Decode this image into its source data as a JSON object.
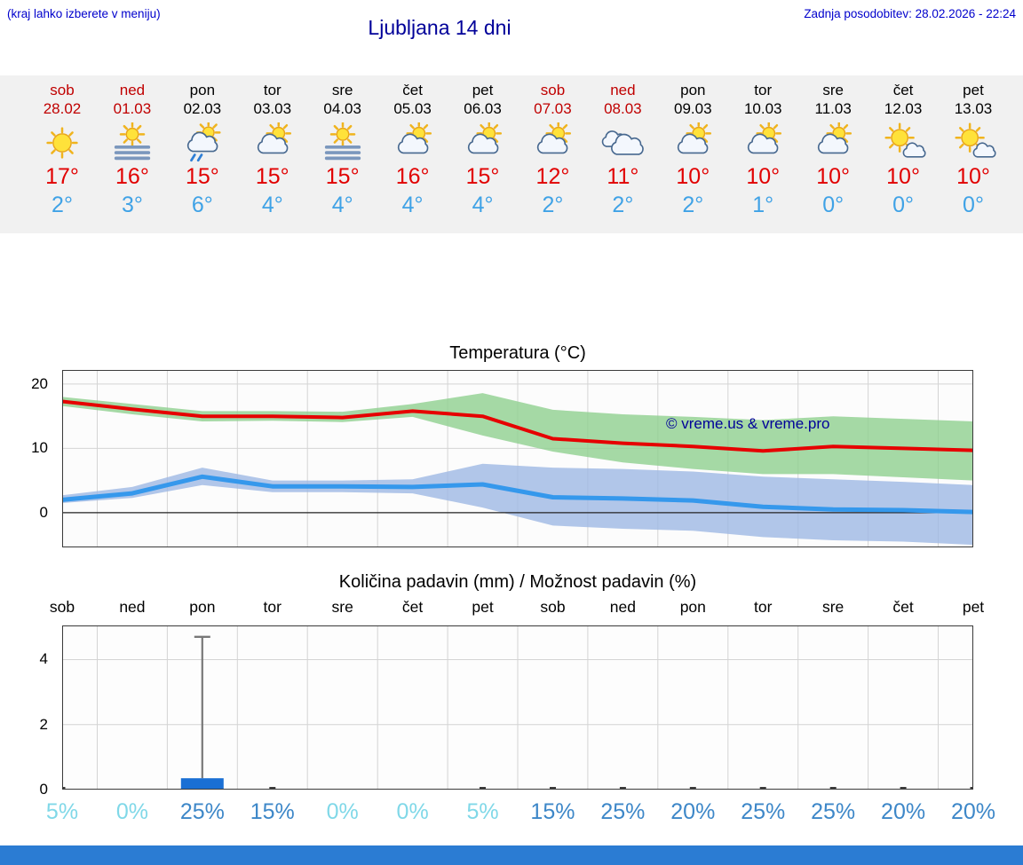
{
  "header": {
    "hint": "(kraj lahko izberete v meniju)",
    "title": "Ljubljana 14 dni",
    "updated": "Zadnja posodobitev: 28.02.2026 - 22:24"
  },
  "colors": {
    "accent_link": "#0000cc",
    "title": "#000099",
    "weekend": "#c00000",
    "temp_max_text": "#e10000",
    "temp_min_text": "#3fa2e6",
    "max_line": "#e60000",
    "min_line": "#3598ec",
    "max_band": "#8fd08f",
    "min_band": "#9db8e4",
    "bar": "#1a6fd4",
    "percent_low": "#80d8e8",
    "percent_high": "#3d87c8",
    "footer": "#2b7cd3",
    "strip_bg": "#f1f1f1"
  },
  "forecast": {
    "days": [
      {
        "name": "sob",
        "date": "28.02",
        "weekend": true,
        "icon": "sun",
        "tmax": "17°",
        "tmin": "2°"
      },
      {
        "name": "ned",
        "date": "01.03",
        "weekend": true,
        "icon": "sun-fog",
        "tmax": "16°",
        "tmin": "3°"
      },
      {
        "name": "pon",
        "date": "02.03",
        "weekend": false,
        "icon": "sun-cloud-rain",
        "tmax": "15°",
        "tmin": "6°"
      },
      {
        "name": "tor",
        "date": "03.03",
        "weekend": false,
        "icon": "sun-cloud",
        "tmax": "15°",
        "tmin": "4°"
      },
      {
        "name": "sre",
        "date": "04.03",
        "weekend": false,
        "icon": "sun-fog",
        "tmax": "15°",
        "tmin": "4°"
      },
      {
        "name": "čet",
        "date": "05.03",
        "weekend": false,
        "icon": "sun-cloud",
        "tmax": "16°",
        "tmin": "4°"
      },
      {
        "name": "pet",
        "date": "06.03",
        "weekend": false,
        "icon": "sun-cloud",
        "tmax": "15°",
        "tmin": "4°"
      },
      {
        "name": "sob",
        "date": "07.03",
        "weekend": true,
        "icon": "sun-cloud",
        "tmax": "12°",
        "tmin": "2°"
      },
      {
        "name": "ned",
        "date": "08.03",
        "weekend": true,
        "icon": "cloud",
        "tmax": "11°",
        "tmin": "2°"
      },
      {
        "name": "pon",
        "date": "09.03",
        "weekend": false,
        "icon": "sun-cloud",
        "tmax": "10°",
        "tmin": "2°"
      },
      {
        "name": "tor",
        "date": "10.03",
        "weekend": false,
        "icon": "sun-cloud",
        "tmax": "10°",
        "tmin": "1°"
      },
      {
        "name": "sre",
        "date": "11.03",
        "weekend": false,
        "icon": "sun-cloud",
        "tmax": "10°",
        "tmin": "0°"
      },
      {
        "name": "čet",
        "date": "12.03",
        "weekend": false,
        "icon": "sun-small-cloud",
        "tmax": "10°",
        "tmin": "0°"
      },
      {
        "name": "pet",
        "date": "13.03",
        "weekend": false,
        "icon": "sun-small-cloud",
        "tmax": "10°",
        "tmin": "0°"
      }
    ]
  },
  "chart_data": [
    {
      "type": "line",
      "title": "Temperatura (°C)",
      "x": [
        "28.02",
        "01.03",
        "02.03",
        "03.03",
        "04.03",
        "05.03",
        "06.03",
        "07.03",
        "08.03",
        "09.03",
        "10.03",
        "11.03",
        "12.03",
        "13.03"
      ],
      "ylim": [
        -5.4,
        22.2
      ],
      "yticks": [
        0,
        10,
        20
      ],
      "grid": true,
      "legend": "none",
      "watermark": "© vreme.us & vreme.pro",
      "series": [
        {
          "name": "max temperature",
          "color_key": "max_line",
          "values": [
            17.3,
            16.1,
            15.0,
            15.0,
            14.8,
            15.8,
            15.0,
            11.5,
            10.8,
            10.3,
            9.6,
            10.3,
            10.0,
            9.7
          ]
        },
        {
          "name": "min temperature",
          "color_key": "min_line",
          "values": [
            2.0,
            3.0,
            5.6,
            4.1,
            4.1,
            4.0,
            4.4,
            2.4,
            2.2,
            1.9,
            0.9,
            0.5,
            0.4,
            0.1
          ]
        }
      ],
      "bands": [
        {
          "name": "max range",
          "color_key": "max_band",
          "upper": [
            18.0,
            16.9,
            15.8,
            15.8,
            15.7,
            16.9,
            18.6,
            16.0,
            15.3,
            14.9,
            14.4,
            15.0,
            14.6,
            14.2
          ],
          "lower": [
            16.6,
            15.3,
            14.2,
            14.3,
            14.1,
            14.9,
            12.0,
            9.5,
            7.8,
            6.8,
            6.0,
            6.0,
            5.5,
            5.0
          ]
        },
        {
          "name": "min range",
          "color_key": "min_band",
          "upper": [
            2.7,
            4.0,
            7.0,
            5.0,
            5.0,
            5.2,
            7.6,
            7.0,
            6.8,
            6.4,
            5.6,
            5.2,
            4.8,
            4.3
          ],
          "lower": [
            1.5,
            2.3,
            4.3,
            3.2,
            3.2,
            3.0,
            0.8,
            -2.0,
            -2.5,
            -2.8,
            -3.8,
            -4.3,
            -4.5,
            -5.0
          ]
        }
      ]
    },
    {
      "type": "bar",
      "title": "Količina padavin (mm) / Možnost padavin (%)",
      "day_labels": [
        "sob",
        "ned",
        "pon",
        "tor",
        "sre",
        "čet",
        "pet",
        "sob",
        "ned",
        "pon",
        "tor",
        "sre",
        "čet",
        "pet"
      ],
      "ylim": [
        0,
        5.05
      ],
      "yticks": [
        0,
        2,
        4
      ],
      "values": [
        0,
        0,
        0.35,
        0,
        0,
        0,
        0,
        0,
        0,
        0,
        0,
        0,
        0,
        0
      ],
      "whisker_max": [
        0,
        0,
        4.7,
        0,
        0,
        0,
        0,
        0,
        0,
        0,
        0,
        0,
        0,
        0
      ],
      "trace_days": [
        0,
        3,
        6,
        7,
        8,
        9,
        10,
        11,
        12,
        13
      ],
      "percent": [
        "5%",
        "0%",
        "25%",
        "15%",
        "0%",
        "0%",
        "5%",
        "15%",
        "25%",
        "20%",
        "25%",
        "25%",
        "20%",
        "20%"
      ]
    }
  ]
}
